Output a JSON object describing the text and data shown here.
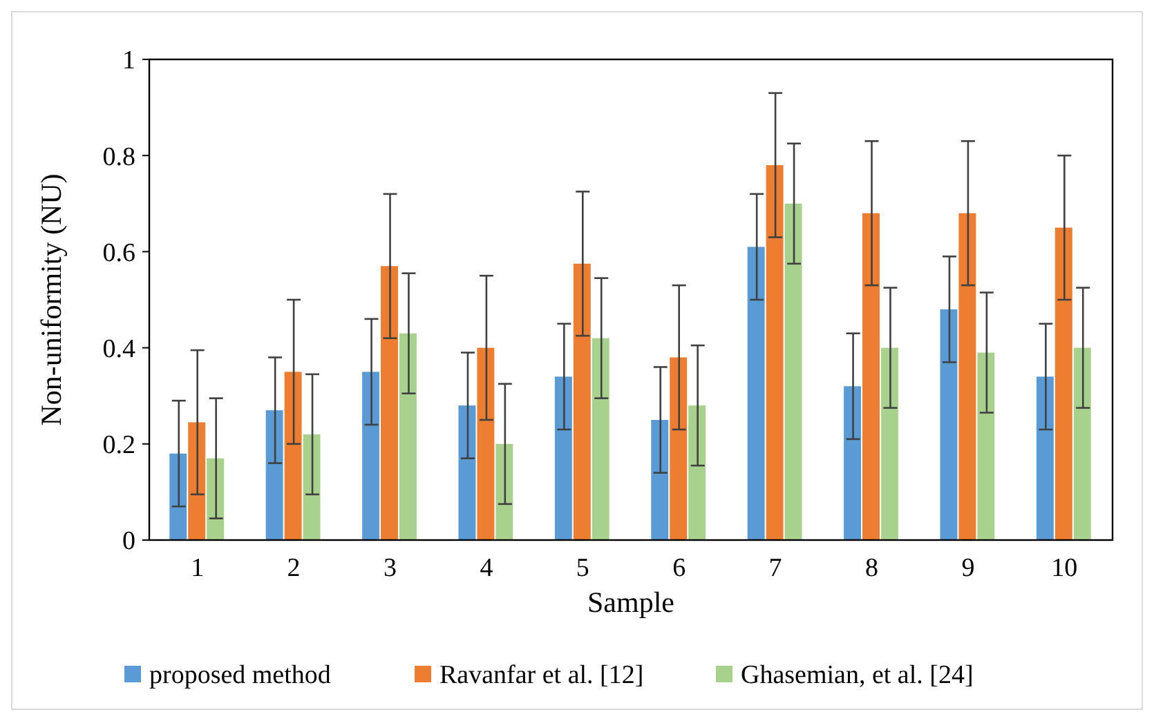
{
  "chart_data": {
    "type": "bar",
    "xlabel": "Sample",
    "ylabel": "Non-uniformity (NU)",
    "categories": [
      "1",
      "2",
      "3",
      "4",
      "5",
      "6",
      "7",
      "8",
      "9",
      "10"
    ],
    "ylim": [
      0,
      1
    ],
    "yticks": [
      0,
      0.2,
      0.4,
      0.6,
      0.8,
      1
    ],
    "legend": "bottom",
    "grid": false,
    "series": [
      {
        "name": "proposed method",
        "color": "#5b9bd5",
        "values": [
          0.18,
          0.27,
          0.35,
          0.28,
          0.34,
          0.25,
          0.61,
          0.32,
          0.48,
          0.34
        ],
        "errors": [
          0.11,
          0.11,
          0.11,
          0.11,
          0.11,
          0.11,
          0.11,
          0.11,
          0.11,
          0.11
        ]
      },
      {
        "name": "Ravanfar et al. [12]",
        "color": "#ed7d31",
        "values": [
          0.245,
          0.35,
          0.57,
          0.4,
          0.575,
          0.38,
          0.78,
          0.68,
          0.68,
          0.65
        ],
        "errors": [
          0.15,
          0.15,
          0.15,
          0.15,
          0.15,
          0.15,
          0.15,
          0.15,
          0.15,
          0.15
        ]
      },
      {
        "name": "Ghasemian, et al. [24]",
        "color": "#a9d18e",
        "values": [
          0.17,
          0.22,
          0.43,
          0.2,
          0.42,
          0.28,
          0.7,
          0.4,
          0.39,
          0.4
        ],
        "errors": [
          0.125,
          0.125,
          0.125,
          0.125,
          0.125,
          0.125,
          0.125,
          0.125,
          0.125,
          0.125
        ]
      }
    ]
  }
}
